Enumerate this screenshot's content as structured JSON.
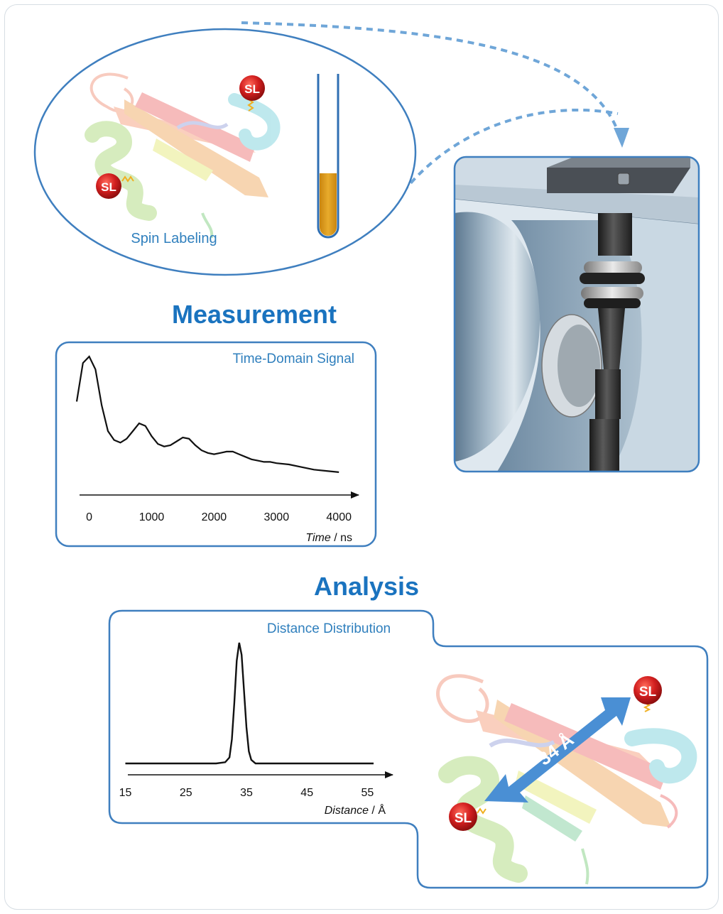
{
  "spin_labeling": {
    "caption": "Spin Labeling",
    "label_text": "SL"
  },
  "measurement": {
    "heading": "Measurement",
    "panel_title": "Time-Domain Signal",
    "x_ticks": [
      "0",
      "1000",
      "2000",
      "3000",
      "4000"
    ],
    "x_axis_italic": "Time",
    "x_axis_sep": " / ",
    "x_axis_unit": "ns"
  },
  "analysis": {
    "heading": "Analysis",
    "panel_title": "Distance Distribution",
    "x_ticks": [
      "15",
      "25",
      "35",
      "45",
      "55"
    ],
    "x_axis_italic": "Distance",
    "x_axis_sep": " / ",
    "x_axis_unit": "Å",
    "distance_label": "34 Å",
    "label_text": "SL"
  },
  "colors": {
    "accent_blue": "#2f7fbd",
    "heading_blue": "#1a73bf",
    "sample_orange": "#e3a11f",
    "spin_label_red": "#d21f1f",
    "arrow_blue": "#4a8fd4"
  },
  "chart_data": [
    {
      "type": "line",
      "title": "Time-Domain Signal",
      "xlabel": "Time / ns",
      "ylabel": "",
      "xlim": [
        -200,
        4100
      ],
      "x": [
        -200,
        -100,
        0,
        100,
        200,
        300,
        400,
        500,
        600,
        700,
        800,
        900,
        1000,
        1100,
        1200,
        1300,
        1400,
        1500,
        1600,
        1700,
        1800,
        1900,
        2000,
        2100,
        2200,
        2300,
        2400,
        2500,
        2600,
        2700,
        2800,
        2900,
        3000,
        3200,
        3400,
        3600,
        3800,
        4000
      ],
      "y": [
        0.65,
        0.95,
        1.0,
        0.9,
        0.62,
        0.42,
        0.35,
        0.33,
        0.36,
        0.42,
        0.48,
        0.46,
        0.38,
        0.32,
        0.3,
        0.31,
        0.34,
        0.37,
        0.36,
        0.31,
        0.27,
        0.25,
        0.24,
        0.25,
        0.26,
        0.26,
        0.24,
        0.22,
        0.2,
        0.19,
        0.18,
        0.18,
        0.17,
        0.16,
        0.14,
        0.12,
        0.11,
        0.1
      ]
    },
    {
      "type": "line",
      "title": "Distance Distribution",
      "xlabel": "Distance / Å",
      "ylabel": "",
      "xlim": [
        14,
        58
      ],
      "x": [
        15,
        30,
        31.5,
        32.2,
        32.6,
        33,
        33.4,
        33.8,
        34.2,
        34.6,
        35,
        35.4,
        35.8,
        36.5,
        38,
        56
      ],
      "y": [
        0,
        0,
        0.01,
        0.05,
        0.2,
        0.5,
        0.85,
        1.0,
        0.9,
        0.6,
        0.3,
        0.1,
        0.03,
        0.0,
        0,
        0
      ]
    }
  ]
}
